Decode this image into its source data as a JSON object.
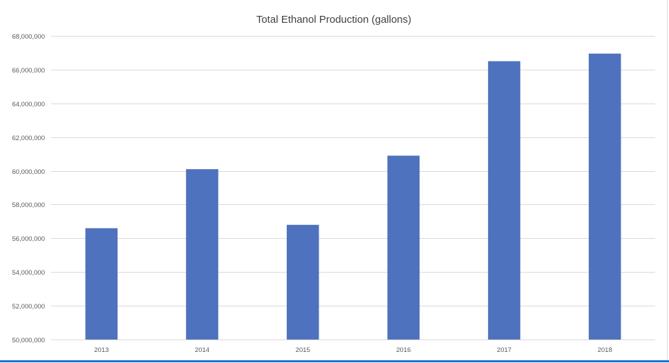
{
  "chart_data": {
    "type": "bar",
    "title": "Total Ethanol Production (gallons)",
    "xlabel": "",
    "ylabel": "",
    "categories": [
      "2013",
      "2014",
      "2015",
      "2016",
      "2017",
      "2018"
    ],
    "values": [
      56600000,
      60100000,
      56800000,
      60900000,
      66500000,
      66950000
    ],
    "ylim": [
      50000000,
      68000000
    ],
    "yticks": [
      50000000,
      52000000,
      54000000,
      56000000,
      58000000,
      60000000,
      62000000,
      64000000,
      66000000,
      68000000
    ],
    "ytick_labels": [
      "50,000,000",
      "52,000,000",
      "54,000,000",
      "56,000,000",
      "58,000,000",
      "60,000,000",
      "62,000,000",
      "64,000,000",
      "66,000,000",
      "68,000,000"
    ],
    "grid": true,
    "legend": "none",
    "bar_color": "#4f72be",
    "grid_color": "#d9d9d9"
  }
}
